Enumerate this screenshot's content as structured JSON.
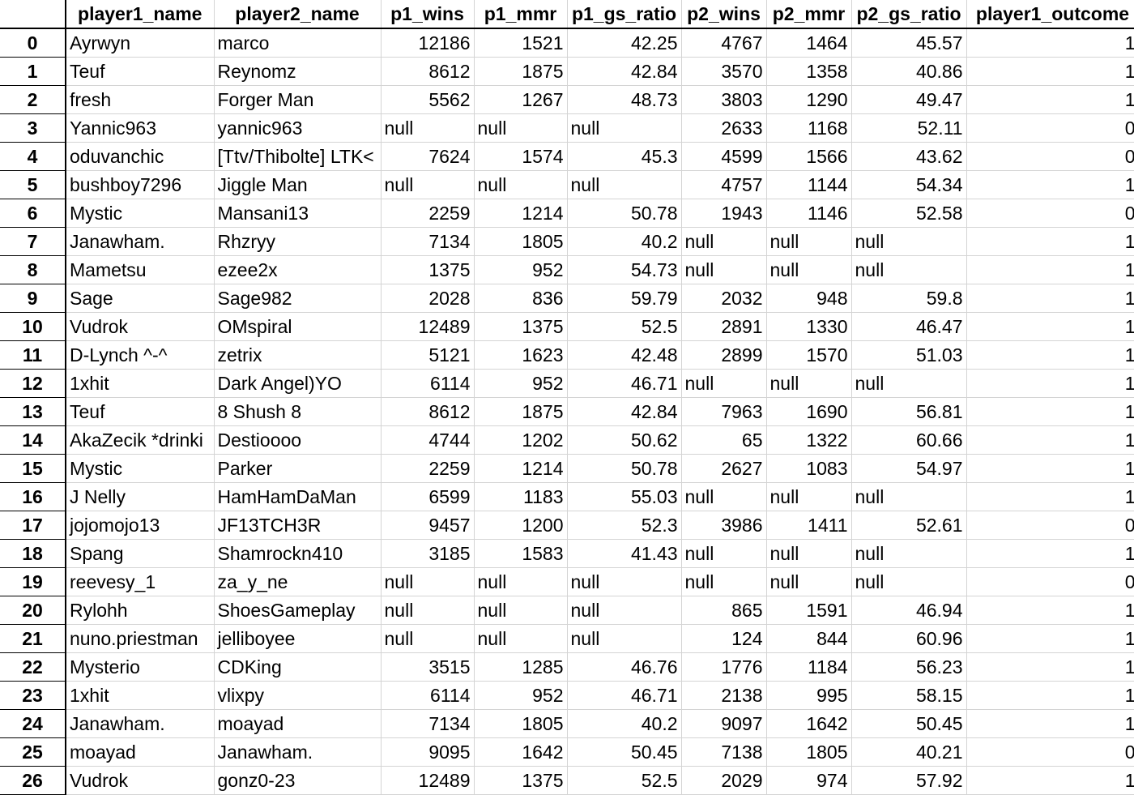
{
  "table": {
    "corner": "",
    "columns": [
      "player1_name",
      "player2_name",
      "p1_wins",
      "p1_mmr",
      "p1_gs_ratio",
      "p2_wins",
      "p2_mmr",
      "p2_gs_ratio",
      "player1_outcome"
    ],
    "rows": [
      {
        "index": "0",
        "cells": [
          "Ayrwyn",
          "marco",
          "12186",
          "1521",
          "42.25",
          "4767",
          "1464",
          "45.57",
          "1"
        ]
      },
      {
        "index": "1",
        "cells": [
          "Teuf",
          "Reynomz",
          "8612",
          "1875",
          "42.84",
          "3570",
          "1358",
          "40.86",
          "1"
        ]
      },
      {
        "index": "2",
        "cells": [
          "fresh",
          "Forger Man",
          "5562",
          "1267",
          "48.73",
          "3803",
          "1290",
          "49.47",
          "1"
        ]
      },
      {
        "index": "3",
        "cells": [
          "Yannic963",
          "yannic963",
          "null",
          "null",
          "null",
          "2633",
          "1168",
          "52.11",
          "0"
        ]
      },
      {
        "index": "4",
        "cells": [
          "oduvanchic",
          "[Ttv/Thibolte] LTK<",
          "7624",
          "1574",
          "45.3",
          "4599",
          "1566",
          "43.62",
          "0"
        ]
      },
      {
        "index": "5",
        "cells": [
          "bushboy7296",
          "Jiggle Man",
          "null",
          "null",
          "null",
          "4757",
          "1144",
          "54.34",
          "1"
        ]
      },
      {
        "index": "6",
        "cells": [
          "Mystic",
          "Mansani13",
          "2259",
          "1214",
          "50.78",
          "1943",
          "1146",
          "52.58",
          "0"
        ]
      },
      {
        "index": "7",
        "cells": [
          "Janawham.",
          "Rhzryy",
          "7134",
          "1805",
          "40.2",
          "null",
          "null",
          "null",
          "1"
        ]
      },
      {
        "index": "8",
        "cells": [
          "Mametsu",
          "ezee2x",
          "1375",
          "952",
          "54.73",
          "null",
          "null",
          "null",
          "1"
        ]
      },
      {
        "index": "9",
        "cells": [
          "Sage",
          "Sage982",
          "2028",
          "836",
          "59.79",
          "2032",
          "948",
          "59.8",
          "1"
        ]
      },
      {
        "index": "10",
        "cells": [
          "Vudrok",
          "OMspiral",
          "12489",
          "1375",
          "52.5",
          "2891",
          "1330",
          "46.47",
          "1"
        ]
      },
      {
        "index": "11",
        "cells": [
          "D-Lynch ^-^",
          "zetrix",
          "5121",
          "1623",
          "42.48",
          "2899",
          "1570",
          "51.03",
          "1"
        ]
      },
      {
        "index": "12",
        "cells": [
          "1xhit",
          "Dark Angel)YO",
          "6114",
          "952",
          "46.71",
          "null",
          "null",
          "null",
          "1"
        ]
      },
      {
        "index": "13",
        "cells": [
          "Teuf",
          "8 Shush 8",
          "8612",
          "1875",
          "42.84",
          "7963",
          "1690",
          "56.81",
          "1"
        ]
      },
      {
        "index": "14",
        "cells": [
          "AkaZecik *drinki",
          "Destioooo",
          "4744",
          "1202",
          "50.62",
          "65",
          "1322",
          "60.66",
          "1"
        ]
      },
      {
        "index": "15",
        "cells": [
          "Mystic",
          "Parker",
          "2259",
          "1214",
          "50.78",
          "2627",
          "1083",
          "54.97",
          "1"
        ]
      },
      {
        "index": "16",
        "cells": [
          "J Nelly",
          "HamHamDaMan",
          "6599",
          "1183",
          "55.03",
          "null",
          "null",
          "null",
          "1"
        ]
      },
      {
        "index": "17",
        "cells": [
          "jojomojo13",
          "JF13TCH3R",
          "9457",
          "1200",
          "52.3",
          "3986",
          "1411",
          "52.61",
          "0"
        ]
      },
      {
        "index": "18",
        "cells": [
          "Spang",
          "Shamrockn410",
          "3185",
          "1583",
          "41.43",
          "null",
          "null",
          "null",
          "1"
        ]
      },
      {
        "index": "19",
        "cells": [
          "reevesy_1",
          "za_y_ne",
          "null",
          "null",
          "null",
          "null",
          "null",
          "null",
          "0"
        ]
      },
      {
        "index": "20",
        "cells": [
          "Rylohh",
          "ShoesGameplay",
          "null",
          "null",
          "null",
          "865",
          "1591",
          "46.94",
          "1"
        ]
      },
      {
        "index": "21",
        "cells": [
          "nuno.priestman",
          "jelliboyee",
          "null",
          "null",
          "null",
          "124",
          "844",
          "60.96",
          "1"
        ]
      },
      {
        "index": "22",
        "cells": [
          "Mysterio",
          "CDKing",
          "3515",
          "1285",
          "46.76",
          "1776",
          "1184",
          "56.23",
          "1"
        ]
      },
      {
        "index": "23",
        "cells": [
          "1xhit",
          "vlixpy",
          "6114",
          "952",
          "46.71",
          "2138",
          "995",
          "58.15",
          "1"
        ]
      },
      {
        "index": "24",
        "cells": [
          "Janawham.",
          "moayad",
          "7134",
          "1805",
          "40.2",
          "9097",
          "1642",
          "50.45",
          "1"
        ]
      },
      {
        "index": "25",
        "cells": [
          "moayad",
          "Janawham.",
          "9095",
          "1642",
          "50.45",
          "7138",
          "1805",
          "40.21",
          "0"
        ]
      },
      {
        "index": "26",
        "cells": [
          "Vudrok",
          "gonz0-23",
          "12489",
          "1375",
          "52.5",
          "2029",
          "974",
          "57.92",
          "1"
        ]
      }
    ]
  }
}
